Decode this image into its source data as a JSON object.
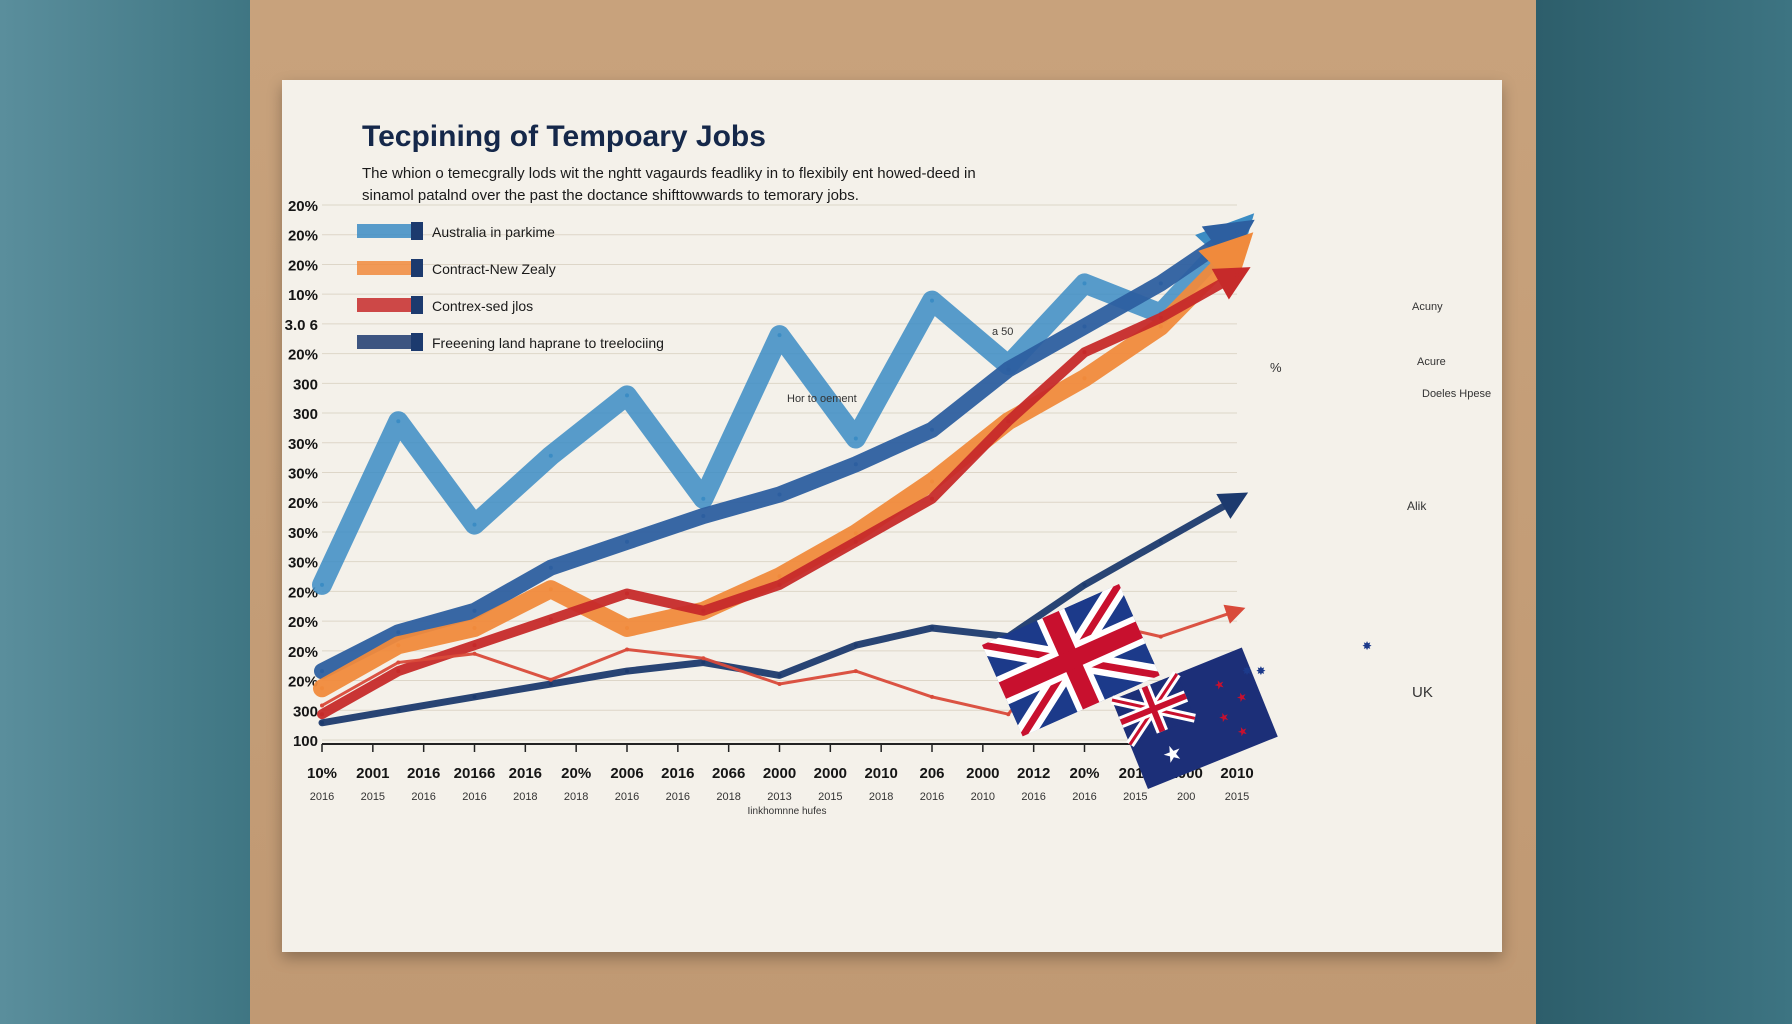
{
  "chart_data": {
    "type": "line",
    "title": "Tecpining of Tempoary Jobs",
    "subtitle_lines": [
      "The whion o temecgrally lods wit the nghtt vagaurds feadliky in to flexibily ent howed-deed in",
      "sinamol patalnd over the past the doctance   shifttowwards to temorary jobs."
    ],
    "ylabels": [
      "100",
      "300",
      "20%",
      "20%",
      "20%",
      "20%",
      "30%",
      "30%",
      "20%",
      "30%",
      "30%",
      "300",
      "300",
      "20%",
      "3.0 6",
      "10%",
      "20%",
      "20%",
      "20%"
    ],
    "xlabels_top": [
      "10%",
      "2001",
      "2016",
      "20166",
      "2016",
      "20%",
      "2006",
      "2016",
      "2066",
      "2000",
      "2000",
      "2010",
      "206",
      "2000",
      "2012",
      "20%",
      "2016",
      "2000",
      "2010"
    ],
    "xlabels_bottom": [
      "2016",
      "2015",
      "2016",
      "2016",
      "2018",
      "2018",
      "2016",
      "2016",
      "2018",
      "2013",
      "2015",
      "2018",
      "2016",
      "2010",
      "2016",
      "2016",
      "2015",
      "200",
      "2015"
    ],
    "xaxis_caption": "Iinkhomnne hufes",
    "legend": [
      {
        "label": "Australia in parkime",
        "color": "#3b8cc4"
      },
      {
        "label": "Contract-New Zealy",
        "color": "#f08a3c"
      },
      {
        "label": "Contrex-sed jlos",
        "color": "#c62a2a"
      },
      {
        "label": "Freeening land haprane to treelociing",
        "color": "#1c3a6e"
      }
    ],
    "side_labels": [
      "Acuny",
      "Acure",
      "Doeles Hpese",
      "%",
      "Alik",
      "UK"
    ],
    "annotations": [
      "Hor to oement",
      "a 50"
    ],
    "series": [
      {
        "color": "#3b8cc4",
        "values": [
          36,
          74,
          50,
          66,
          80,
          56,
          94,
          70,
          102,
          87,
          106,
          99,
          118
        ]
      },
      {
        "color": "#2d5fa0",
        "values": [
          16,
          25,
          30,
          40,
          46,
          52,
          57,
          64,
          72,
          86,
          96,
          106,
          118
        ]
      },
      {
        "color": "#f08a3c",
        "values": [
          12,
          22,
          26,
          35,
          26,
          30,
          38,
          48,
          60,
          74,
          84,
          96,
          114
        ]
      },
      {
        "color": "#c62a2a",
        "values": [
          6,
          16,
          22,
          28,
          34,
          30,
          36,
          46,
          56,
          74,
          90,
          98,
          108
        ]
      },
      {
        "color": "#1c3a6e",
        "values": [
          4,
          7,
          10,
          13,
          16,
          18,
          15,
          22,
          26,
          24,
          36,
          46,
          56
        ]
      },
      {
        "color": "#d94a3a",
        "values": [
          8,
          18,
          20,
          14,
          21,
          19,
          13,
          16,
          10,
          6,
          28,
          24,
          30
        ]
      }
    ],
    "ylim": [
      0,
      130
    ],
    "grid": true
  },
  "colors": {
    "blue": "#3b8cc4",
    "orange": "#f08a3c",
    "red": "#c62a2a",
    "navy": "#1c3a6e"
  },
  "flags": [
    "uk-flag",
    "australia-flag"
  ]
}
